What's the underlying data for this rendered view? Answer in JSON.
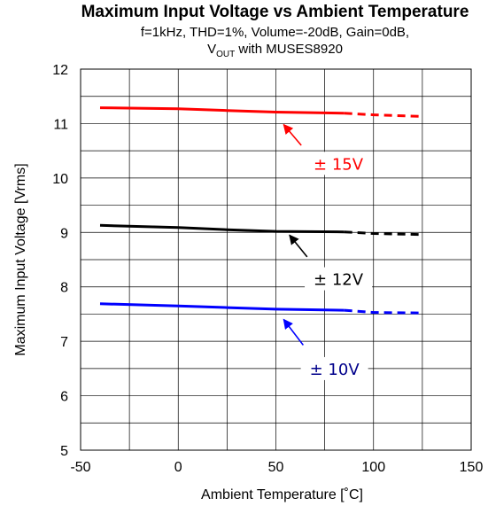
{
  "chart_data": {
    "type": "line",
    "title": "Maximum Input Voltage vs Ambient Temperature",
    "subtitle_line1": "f=1kHz, THD=1%, Volume=-20dB, Gain=0dB,",
    "subtitle_line2_main": "V",
    "subtitle_line2_sub": "OUT",
    "subtitle_line2_rest": " with MUSES8920",
    "xlabel": "Ambient Temperature [˚C]",
    "ylabel": "Maximum Input Voltage [Vrms]",
    "xlim": [
      -50,
      150
    ],
    "ylim": [
      5,
      12
    ],
    "xticks": [
      -50,
      0,
      50,
      100,
      150
    ],
    "yticks": [
      5,
      6,
      7,
      8,
      9,
      10,
      11,
      12
    ],
    "x_minor_step": 25,
    "y_minor_step": 0.5,
    "grid": true,
    "series": [
      {
        "name": "± 15V",
        "color": "#ff0000",
        "label_color": "#ff0000",
        "solid": [
          [
            -40,
            11.29
          ],
          [
            0,
            11.27
          ],
          [
            25,
            11.24
          ],
          [
            50,
            11.21
          ],
          [
            85,
            11.19
          ]
        ],
        "dashed": [
          [
            85,
            11.19
          ],
          [
            100,
            11.16
          ],
          [
            125,
            11.13
          ]
        ],
        "arrow_from": [
          63,
          10.6
        ],
        "arrow_to": [
          54,
          10.98
        ],
        "label_at": [
          82,
          10.22
        ]
      },
      {
        "name": "± 12V",
        "color": "#000000",
        "label_color": "#000000",
        "solid": [
          [
            -40,
            9.13
          ],
          [
            0,
            9.09
          ],
          [
            25,
            9.05
          ],
          [
            50,
            9.02
          ],
          [
            85,
            9.01
          ]
        ],
        "dashed": [
          [
            85,
            9.01
          ],
          [
            100,
            8.98
          ],
          [
            125,
            8.96
          ]
        ],
        "arrow_from": [
          66,
          8.55
        ],
        "arrow_to": [
          57,
          8.95
        ],
        "label_at": [
          82,
          8.1
        ]
      },
      {
        "name": "± 10V",
        "color": "#0000ff",
        "label_color": "#00008b",
        "solid": [
          [
            -40,
            7.69
          ],
          [
            0,
            7.65
          ],
          [
            25,
            7.62
          ],
          [
            50,
            7.59
          ],
          [
            85,
            7.57
          ]
        ],
        "dashed": [
          [
            85,
            7.57
          ],
          [
            100,
            7.53
          ],
          [
            125,
            7.52
          ]
        ],
        "arrow_from": [
          64,
          6.93
        ],
        "arrow_to": [
          54,
          7.4
        ],
        "label_at": [
          80,
          6.45
        ]
      }
    ]
  },
  "colors": {
    "grid": "#000000",
    "axis": "#000000",
    "text": "#000000"
  }
}
